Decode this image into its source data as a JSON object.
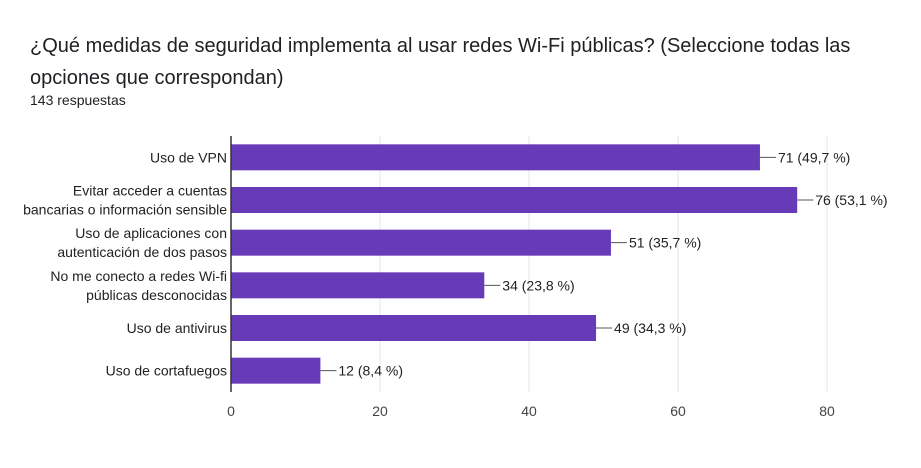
{
  "header": {
    "title": "¿Qué medidas de seguridad implementa al usar redes Wi-Fi públicas? (Seleccione todas las opciones que correspondan)",
    "responses": "143 respuestas"
  },
  "colors": {
    "bar": "#673ab7",
    "grid": "#e6e6e6",
    "axis": "#333333"
  },
  "chart_data": {
    "type": "bar",
    "orientation": "horizontal",
    "title": "¿Qué medidas de seguridad implementa al usar redes Wi-Fi públicas? (Seleccione todas las opciones que correspondan)",
    "categories": [
      [
        "Uso de VPN"
      ],
      [
        "Evitar acceder a cuentas",
        "bancarias o información sensible"
      ],
      [
        "Uso de aplicaciones con",
        "autenticación de dos pasos"
      ],
      [
        "No me conecto a redes Wi-fi",
        "públicas desconocidas"
      ],
      [
        "Uso de antivirus"
      ],
      [
        "Uso de cortafuegos"
      ]
    ],
    "values": [
      71,
      76,
      51,
      34,
      49,
      12
    ],
    "value_labels": [
      "71 (49,7 %)",
      "76 (53,1 %)",
      "51 (35,7 %)",
      "34 (23,8 %)",
      "49 (34,3 %)",
      "12 (8,4 %)"
    ],
    "xlim": [
      0,
      80
    ],
    "xticks": [
      0,
      20,
      40,
      60,
      80
    ],
    "grid": true
  }
}
